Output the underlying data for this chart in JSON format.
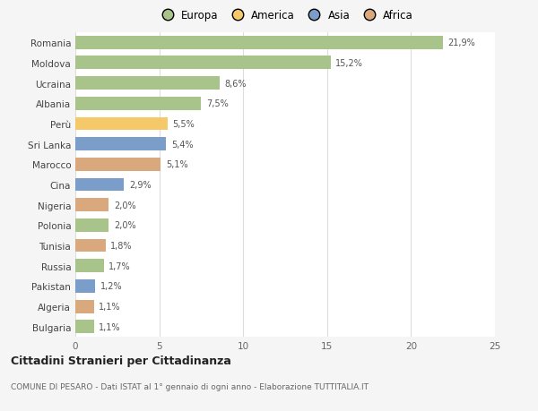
{
  "categories": [
    "Romania",
    "Moldova",
    "Ucraina",
    "Albania",
    "Perù",
    "Sri Lanka",
    "Marocco",
    "Cina",
    "Nigeria",
    "Polonia",
    "Tunisia",
    "Russia",
    "Pakistan",
    "Algeria",
    "Bulgaria"
  ],
  "values": [
    21.9,
    15.2,
    8.6,
    7.5,
    5.5,
    5.4,
    5.1,
    2.9,
    2.0,
    2.0,
    1.8,
    1.7,
    1.2,
    1.1,
    1.1
  ],
  "labels": [
    "21,9%",
    "15,2%",
    "8,6%",
    "7,5%",
    "5,5%",
    "5,4%",
    "5,1%",
    "2,9%",
    "2,0%",
    "2,0%",
    "1,8%",
    "1,7%",
    "1,2%",
    "1,1%",
    "1,1%"
  ],
  "continents": [
    "Europa",
    "Europa",
    "Europa",
    "Europa",
    "America",
    "Asia",
    "Africa",
    "Asia",
    "Africa",
    "Europa",
    "Africa",
    "Europa",
    "Asia",
    "Africa",
    "Europa"
  ],
  "colors": {
    "Europa": "#a8c48a",
    "America": "#f5c96a",
    "Asia": "#7b9dc9",
    "Africa": "#d9a87c"
  },
  "legend_order": [
    "Europa",
    "America",
    "Asia",
    "Africa"
  ],
  "xlim": [
    0,
    25
  ],
  "xticks": [
    0,
    5,
    10,
    15,
    20,
    25
  ],
  "title": "Cittadini Stranieri per Cittadinanza",
  "subtitle": "COMUNE DI PESARO - Dati ISTAT al 1° gennaio di ogni anno - Elaborazione TUTTITALIA.IT",
  "background_color": "#f5f5f5",
  "bar_background_color": "#ffffff",
  "grid_color": "#dddddd"
}
